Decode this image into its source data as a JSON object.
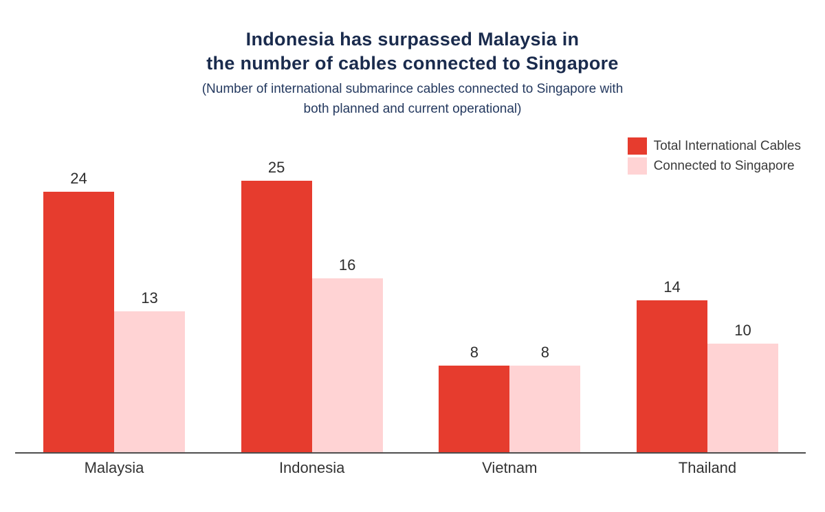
{
  "title": {
    "line1": "Indonesia has surpassed Malaysia in",
    "line2": "the number of cables connected to Singapore"
  },
  "subtitle": {
    "line1": "(Number of international submarince cables connected to Singapore with",
    "line2": "both planned and current operational)"
  },
  "legend": {
    "items": [
      {
        "label": "Total International Cables",
        "color": "#e63c2e"
      },
      {
        "label": "Connected to Singapore",
        "color": "#ffd3d4"
      }
    ]
  },
  "colors": {
    "title_text": "#1a2b4d",
    "subtitle_text": "#24395f",
    "series_total": "#e63c2e",
    "series_singapore": "#ffd3d4",
    "axis_line": "#4d4d4d",
    "value_label_text": "#2d2d2d",
    "category_label_text": "#333333"
  },
  "chart_data": {
    "type": "bar",
    "title": "Indonesia has surpassed Malaysia in the number of cables connected to Singapore",
    "subtitle": "(Number of international submarince cables connected to Singapore with both planned and current operational)",
    "categories": [
      "Malaysia",
      "Indonesia",
      "Vietnam",
      "Thailand"
    ],
    "series": [
      {
        "name": "Total International Cables",
        "color": "#e63c2e",
        "values": [
          24,
          25,
          8,
          14
        ]
      },
      {
        "name": "Connected to Singapore",
        "color": "#ffd3d4",
        "values": [
          13,
          16,
          8,
          10
        ]
      }
    ],
    "xlabel": "",
    "ylabel": "",
    "ylim": [
      0,
      25
    ],
    "grid": false,
    "bar_value_labels": true,
    "legend_position": "top-right"
  }
}
